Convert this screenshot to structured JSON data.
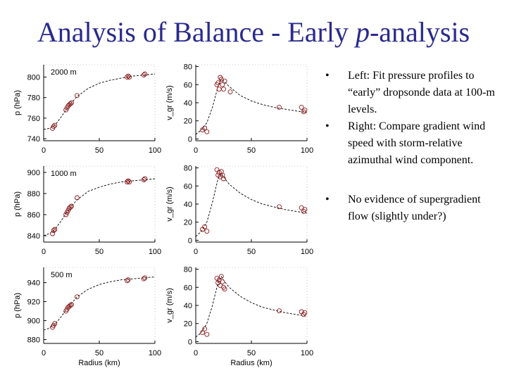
{
  "slide": {
    "title_prefix": "Analysis of Balance - Early ",
    "title_italic": "p",
    "title_suffix": "-analysis",
    "bullets": [
      "Left: Fit pressure profiles to “early” dropsonde data at 100-m levels.",
      "Right: Compare gradient wind speed with storm-relative azimuthal wind component.",
      "No evidence of supergradient flow (slightly under?)"
    ],
    "bullet_symbol": "•"
  },
  "colors": {
    "title": "#2a2a8c",
    "markers": "#8b1a1a",
    "curve": "#000000"
  },
  "chart_data": [
    {
      "type": "scatter",
      "panel_label": "2000 m",
      "xlabel": "",
      "ylabel": "p (hPa)",
      "xlim": [
        0,
        100
      ],
      "ylim": [
        738,
        812
      ],
      "xticks": [
        "0",
        "50",
        "100"
      ],
      "yticks": [
        740,
        760,
        780,
        800
      ],
      "points_x": [
        8,
        9,
        10,
        20,
        21,
        22,
        23,
        24,
        25,
        30,
        75,
        76,
        77,
        90,
        91
      ],
      "points_y": [
        750,
        752,
        753,
        768,
        770,
        772,
        773,
        774,
        775,
        782,
        800,
        801,
        800,
        802,
        803
      ],
      "fit_x": [
        0,
        5,
        10,
        15,
        20,
        25,
        30,
        40,
        50,
        60,
        70,
        80,
        90,
        100
      ],
      "fit_y": [
        749,
        750,
        753,
        760,
        768,
        775,
        781,
        789,
        794,
        797,
        799,
        801,
        802,
        803
      ]
    },
    {
      "type": "scatter",
      "panel_label": "",
      "xlabel": "",
      "ylabel": "v_gr (m/s)",
      "xlim": [
        0,
        100
      ],
      "ylim": [
        -2,
        82
      ],
      "xticks": [
        "0",
        "50",
        "100"
      ],
      "yticks": [
        0,
        20,
        40,
        60,
        80
      ],
      "points_x": [
        6,
        8,
        10,
        19,
        20,
        21,
        22,
        23,
        24,
        25,
        26,
        31,
        75,
        95,
        97,
        98
      ],
      "points_y": [
        10,
        12,
        8,
        60,
        62,
        55,
        68,
        66,
        60,
        55,
        64,
        52,
        35,
        35,
        30,
        32
      ],
      "fit_x": [
        0,
        5,
        10,
        15,
        20,
        23,
        25,
        30,
        40,
        50,
        60,
        70,
        80,
        90,
        100
      ],
      "fit_y": [
        5,
        10,
        18,
        35,
        58,
        66,
        64,
        58,
        48,
        42,
        38,
        35,
        33,
        31,
        29
      ]
    },
    {
      "type": "scatter",
      "panel_label": "1000 m",
      "xlabel": "",
      "ylabel": "p (hPa)",
      "xlim": [
        0,
        100
      ],
      "ylim": [
        834,
        906
      ],
      "xticks": [
        "0",
        "50",
        "100"
      ],
      "yticks": [
        840,
        860,
        880,
        900
      ],
      "points_x": [
        8,
        9,
        10,
        20,
        21,
        22,
        23,
        24,
        25,
        30,
        75,
        76,
        77,
        90,
        91
      ],
      "points_y": [
        842,
        845,
        846,
        860,
        862,
        864,
        866,
        867,
        868,
        876,
        891,
        892,
        891,
        893,
        894
      ],
      "fit_x": [
        0,
        5,
        10,
        15,
        20,
        25,
        30,
        40,
        50,
        60,
        70,
        80,
        90,
        100
      ],
      "fit_y": [
        840,
        842,
        846,
        853,
        861,
        868,
        874,
        882,
        886,
        889,
        891,
        892,
        893,
        894
      ]
    },
    {
      "type": "scatter",
      "panel_label": "",
      "xlabel": "",
      "ylabel": "v_gr (m/s)",
      "xlim": [
        0,
        100
      ],
      "ylim": [
        -2,
        82
      ],
      "xticks": [
        "0",
        "50",
        "100"
      ],
      "yticks": [
        0,
        20,
        40,
        60,
        80
      ],
      "points_x": [
        6,
        8,
        10,
        19,
        20,
        21,
        22,
        23,
        24,
        25,
        75,
        95,
        97,
        98
      ],
      "points_y": [
        12,
        15,
        10,
        78,
        72,
        75,
        70,
        76,
        72,
        68,
        37,
        36,
        32,
        34
      ],
      "fit_x": [
        0,
        5,
        10,
        15,
        20,
        23,
        25,
        30,
        40,
        50,
        60,
        70,
        80,
        90,
        100
      ],
      "fit_y": [
        4,
        10,
        20,
        42,
        68,
        74,
        70,
        62,
        52,
        45,
        40,
        37,
        34,
        32,
        30
      ]
    },
    {
      "type": "scatter",
      "panel_label": "500 m",
      "xlabel": "Radius (km)",
      "ylabel": "p (hPa)",
      "xlim": [
        0,
        100
      ],
      "ylim": [
        876,
        956
      ],
      "xticks": [
        "0",
        "50",
        "100"
      ],
      "yticks": [
        880,
        900,
        920,
        940
      ],
      "points_x": [
        8,
        9,
        10,
        20,
        21,
        22,
        23,
        24,
        25,
        30,
        75,
        76,
        90,
        91
      ],
      "points_y": [
        893,
        895,
        897,
        910,
        912,
        914,
        915,
        916,
        917,
        925,
        942,
        943,
        944,
        945
      ],
      "fit_x": [
        0,
        5,
        10,
        15,
        20,
        25,
        30,
        40,
        50,
        60,
        70,
        80,
        90,
        100
      ],
      "fit_y": [
        890,
        892,
        896,
        903,
        911,
        918,
        925,
        933,
        938,
        941,
        943,
        944,
        945,
        946
      ]
    },
    {
      "type": "scatter",
      "panel_label": "",
      "xlabel": "Radius (km)",
      "ylabel": "v_gr (m/s)",
      "xlim": [
        0,
        100
      ],
      "ylim": [
        -2,
        82
      ],
      "xticks": [
        "0",
        "50",
        "100"
      ],
      "yticks": [
        0,
        20,
        40,
        60,
        80
      ],
      "points_x": [
        6,
        8,
        10,
        19,
        20,
        21,
        22,
        23,
        24,
        25,
        26,
        75,
        95,
        97,
        98
      ],
      "points_y": [
        10,
        14,
        8,
        70,
        65,
        68,
        62,
        72,
        66,
        60,
        58,
        34,
        33,
        30,
        32
      ],
      "fit_x": [
        0,
        5,
        10,
        15,
        20,
        23,
        25,
        30,
        40,
        50,
        60,
        70,
        80,
        90,
        100
      ],
      "fit_y": [
        5,
        10,
        20,
        40,
        65,
        72,
        68,
        60,
        50,
        43,
        38,
        35,
        32,
        30,
        28
      ]
    }
  ]
}
